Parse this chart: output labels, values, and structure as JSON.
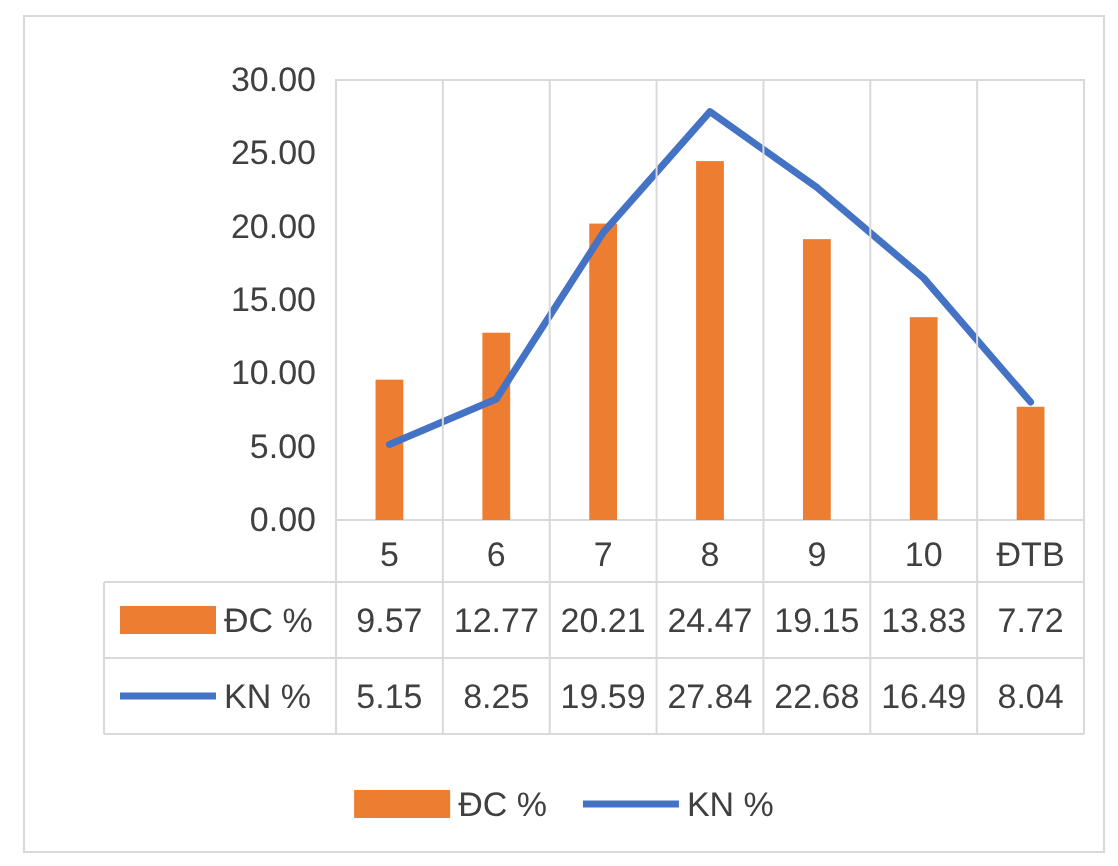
{
  "chart_data": {
    "type": "bar",
    "categories": [
      "5",
      "6",
      "7",
      "8",
      "9",
      "10",
      "ĐTB"
    ],
    "series": [
      {
        "name": "ĐC %",
        "color": "#ed7d31",
        "values": [
          9.57,
          12.77,
          20.21,
          24.47,
          19.15,
          13.83,
          7.72
        ]
      },
      {
        "name": "KN %",
        "type": "line",
        "color": "#4472c4",
        "values": [
          5.15,
          8.25,
          19.59,
          27.84,
          22.68,
          16.49,
          8.04
        ]
      }
    ],
    "ylim": [
      0,
      30
    ],
    "yticks": [
      {
        "value": 0,
        "label": "0.00"
      },
      {
        "value": 5,
        "label": "5.00"
      },
      {
        "value": 10,
        "label": "10.00"
      },
      {
        "value": 15,
        "label": "15.00"
      },
      {
        "value": 20,
        "label": "20.00"
      },
      {
        "value": 25,
        "label": "25.00"
      },
      {
        "value": 30,
        "label": "30.00"
      }
    ],
    "data_labels": true,
    "legend": "bottom",
    "line_style": "solid",
    "marker": "none"
  }
}
